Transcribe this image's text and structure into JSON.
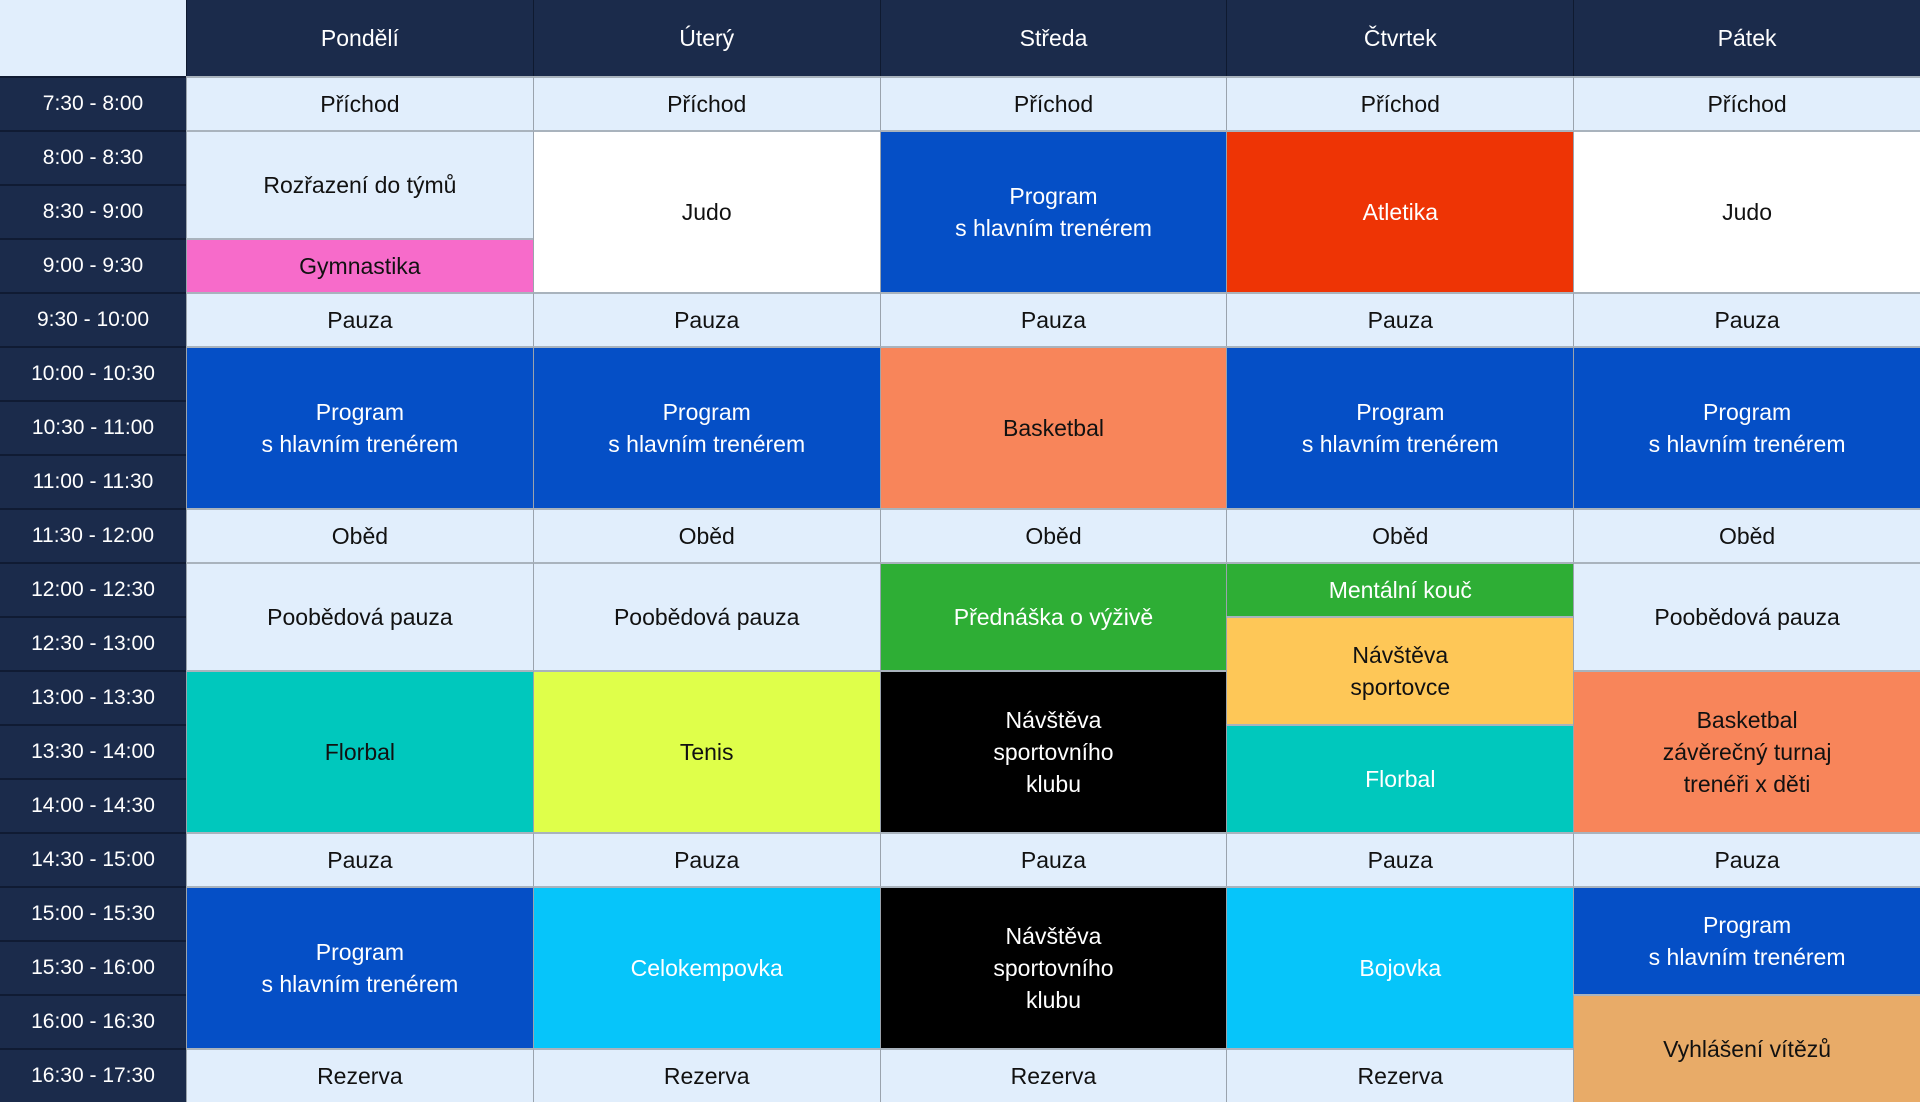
{
  "days": [
    "Pondělí",
    "Úterý",
    "Středa",
    "Čtvrtek",
    "Pátek"
  ],
  "times": [
    "7:30 - 8:00",
    "8:00 - 8:30",
    "8:30 - 9:00",
    "9:00 - 9:30",
    "9:30 - 10:00",
    "10:00 - 10:30",
    "10:30 - 11:00",
    "11:00 - 11:30",
    "11:30 - 12:00",
    "12:00 - 12:30",
    "12:30 - 13:00",
    "13:00 - 13:30",
    "13:30 - 14:00",
    "14:00 - 14:30",
    "14:30 - 15:00",
    "15:00 - 15:30",
    "15:30 - 16:00",
    "16:00 - 16:30",
    "16:30 - 17:30"
  ],
  "colors": {
    "header": "#1b2b4b",
    "light": "#e1eefc",
    "white": "#ffffff",
    "blue": "#054fc6",
    "pink": "#f76bca",
    "teal": "#00c8bd",
    "lime": "#dfff4a",
    "cyan": "#06c5fa",
    "salmon": "#f8855a",
    "green": "#2eae35",
    "black": "#000000",
    "red": "#ee3405",
    "yellow": "#fec757",
    "tan": "#e8ab68"
  },
  "schedule": [
    [
      {
        "label": "Příchod",
        "start": 0,
        "span": 1,
        "color": "light",
        "text": "dark"
      },
      {
        "label": "Rozřazení do týmů",
        "start": 1,
        "span": 2,
        "color": "light",
        "text": "dark"
      },
      {
        "label": "Gymnastika",
        "start": 3,
        "span": 1,
        "color": "pink",
        "text": "dark"
      },
      {
        "label": "Pauza",
        "start": 4,
        "span": 1,
        "color": "light",
        "text": "dark"
      },
      {
        "label": "Program\ns hlavním trenérem",
        "start": 5,
        "span": 3,
        "color": "blue",
        "text": "light"
      },
      {
        "label": "Oběd",
        "start": 8,
        "span": 1,
        "color": "light",
        "text": "dark"
      },
      {
        "label": "Poobědová pauza",
        "start": 9,
        "span": 2,
        "color": "light",
        "text": "dark"
      },
      {
        "label": "Florbal",
        "start": 11,
        "span": 3,
        "color": "teal",
        "text": "dark"
      },
      {
        "label": "Pauza",
        "start": 14,
        "span": 1,
        "color": "light",
        "text": "dark"
      },
      {
        "label": "Program\ns hlavním trenérem",
        "start": 15,
        "span": 3,
        "color": "blue",
        "text": "light"
      },
      {
        "label": "Rezerva",
        "start": 18,
        "span": 1,
        "color": "light",
        "text": "dark"
      }
    ],
    [
      {
        "label": "Příchod",
        "start": 0,
        "span": 1,
        "color": "light",
        "text": "dark"
      },
      {
        "label": "Judo",
        "start": 1,
        "span": 3,
        "color": "white",
        "text": "dark"
      },
      {
        "label": "Pauza",
        "start": 4,
        "span": 1,
        "color": "light",
        "text": "dark"
      },
      {
        "label": "Program\ns hlavním trenérem",
        "start": 5,
        "span": 3,
        "color": "blue",
        "text": "light"
      },
      {
        "label": "Oběd",
        "start": 8,
        "span": 1,
        "color": "light",
        "text": "dark"
      },
      {
        "label": "Poobědová pauza",
        "start": 9,
        "span": 2,
        "color": "light",
        "text": "dark"
      },
      {
        "label": "Tenis",
        "start": 11,
        "span": 3,
        "color": "lime",
        "text": "dark"
      },
      {
        "label": "Pauza",
        "start": 14,
        "span": 1,
        "color": "light",
        "text": "dark"
      },
      {
        "label": "Celokempovka",
        "start": 15,
        "span": 3,
        "color": "cyan",
        "text": "light"
      },
      {
        "label": "Rezerva",
        "start": 18,
        "span": 1,
        "color": "light",
        "text": "dark"
      }
    ],
    [
      {
        "label": "Příchod",
        "start": 0,
        "span": 1,
        "color": "light",
        "text": "dark"
      },
      {
        "label": "Program\ns hlavním trenérem",
        "start": 1,
        "span": 3,
        "color": "blue",
        "text": "light"
      },
      {
        "label": "Pauza",
        "start": 4,
        "span": 1,
        "color": "light",
        "text": "dark"
      },
      {
        "label": "Basketbal",
        "start": 5,
        "span": 3,
        "color": "salmon",
        "text": "dark"
      },
      {
        "label": "Oběd",
        "start": 8,
        "span": 1,
        "color": "light",
        "text": "dark"
      },
      {
        "label": "Přednáška o výživě",
        "start": 9,
        "span": 2,
        "color": "green",
        "text": "light"
      },
      {
        "label": "Návštěva\nsportovního\nklubu",
        "start": 11,
        "span": 3,
        "color": "black",
        "text": "light"
      },
      {
        "label": "Pauza",
        "start": 14,
        "span": 1,
        "color": "light",
        "text": "dark"
      },
      {
        "label": "Návštěva\nsportovního\nklubu",
        "start": 15,
        "span": 3,
        "color": "black",
        "text": "light"
      },
      {
        "label": "Rezerva",
        "start": 18,
        "span": 1,
        "color": "light",
        "text": "dark"
      }
    ],
    [
      {
        "label": "Příchod",
        "start": 0,
        "span": 1,
        "color": "light",
        "text": "dark"
      },
      {
        "label": "Atletika",
        "start": 1,
        "span": 3,
        "color": "red",
        "text": "light"
      },
      {
        "label": "Pauza",
        "start": 4,
        "span": 1,
        "color": "light",
        "text": "dark"
      },
      {
        "label": "Program\ns hlavním trenérem",
        "start": 5,
        "span": 3,
        "color": "blue",
        "text": "light"
      },
      {
        "label": "Oběd",
        "start": 8,
        "span": 1,
        "color": "light",
        "text": "dark"
      },
      {
        "label": "Mentální kouč",
        "start": 9,
        "span": 1,
        "color": "green",
        "text": "light"
      },
      {
        "label": "Návštěva\nsportovce",
        "start": 10,
        "span": 2,
        "color": "yellow",
        "text": "dark"
      },
      {
        "label": "Florbal",
        "start": 12,
        "span": 2,
        "color": "teal",
        "text": "light"
      },
      {
        "label": "Pauza",
        "start": 14,
        "span": 1,
        "color": "light",
        "text": "dark"
      },
      {
        "label": "Bojovka",
        "start": 15,
        "span": 3,
        "color": "cyan",
        "text": "light"
      },
      {
        "label": "Rezerva",
        "start": 18,
        "span": 1,
        "color": "light",
        "text": "dark"
      }
    ],
    [
      {
        "label": "Příchod",
        "start": 0,
        "span": 1,
        "color": "light",
        "text": "dark"
      },
      {
        "label": "Judo",
        "start": 1,
        "span": 3,
        "color": "white",
        "text": "dark"
      },
      {
        "label": "Pauza",
        "start": 4,
        "span": 1,
        "color": "light",
        "text": "dark"
      },
      {
        "label": "Program\ns hlavním trenérem",
        "start": 5,
        "span": 3,
        "color": "blue",
        "text": "light"
      },
      {
        "label": "Oběd",
        "start": 8,
        "span": 1,
        "color": "light",
        "text": "dark"
      },
      {
        "label": "Poobědová pauza",
        "start": 9,
        "span": 2,
        "color": "light",
        "text": "dark"
      },
      {
        "label": "Basketbal\nzávěrečný turnaj\ntrenéři x děti",
        "start": 11,
        "span": 3,
        "color": "salmon",
        "text": "dark"
      },
      {
        "label": "Pauza",
        "start": 14,
        "span": 1,
        "color": "light",
        "text": "dark"
      },
      {
        "label": "Program\ns hlavním trenérem",
        "start": 15,
        "span": 2,
        "color": "blue",
        "text": "light"
      },
      {
        "label": "Vyhlášení vítězů",
        "start": 17,
        "span": 2,
        "color": "tan",
        "text": "dark"
      }
    ]
  ]
}
